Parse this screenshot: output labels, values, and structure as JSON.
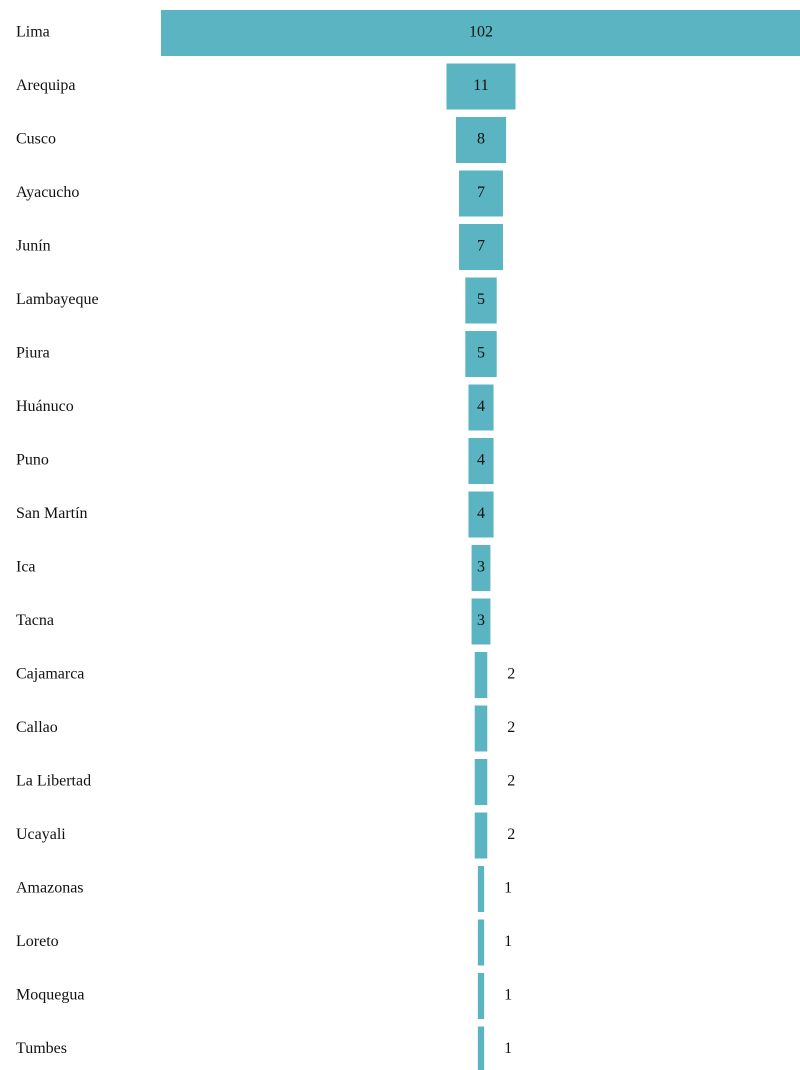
{
  "chart_data": {
    "type": "bar",
    "orientation": "horizontal",
    "color": "#5ab4c1",
    "categories": [
      "Lima",
      "Arequipa",
      "Cusco",
      "Ayacucho",
      "Junín",
      "Lambayeque",
      "Piura",
      "Huánuco",
      "Puno",
      "San Martín",
      "Ica",
      "Tacna",
      "Cajamarca",
      "Callao",
      "La Libertad",
      "Ucayali",
      "Amazonas",
      "Loreto",
      "Moquegua",
      "Tumbes"
    ],
    "values": [
      102,
      11,
      8,
      7,
      7,
      5,
      5,
      4,
      4,
      4,
      3,
      3,
      2,
      2,
      2,
      2,
      1,
      1,
      1,
      1
    ]
  }
}
